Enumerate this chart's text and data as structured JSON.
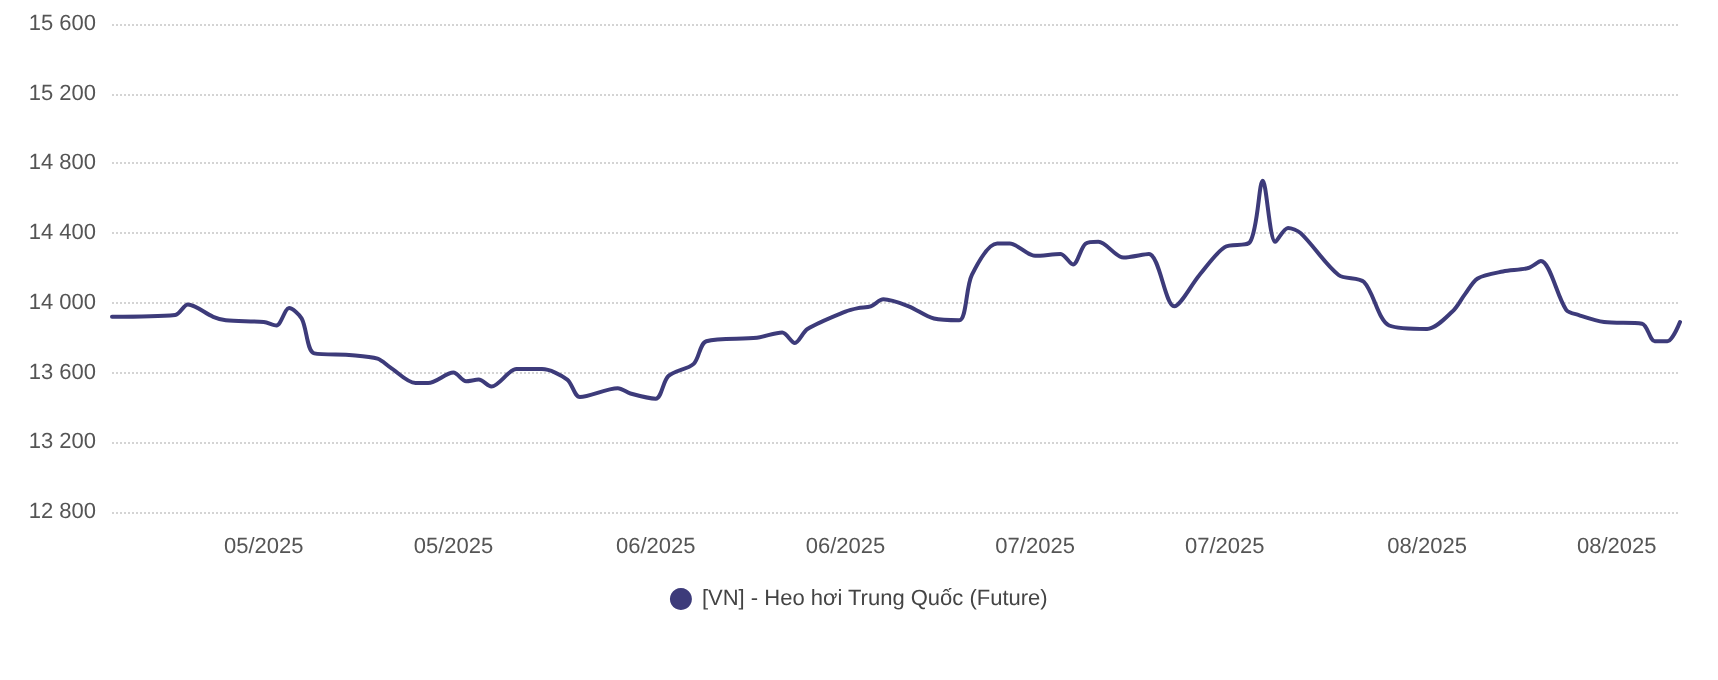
{
  "chart_data": {
    "type": "line",
    "x": [
      "2025-04-19",
      "2025-04-24",
      "2025-04-25",
      "2025-04-27",
      "2025-04-28",
      "2025-05-01",
      "2025-05-02",
      "2025-05-03",
      "2025-05-04",
      "2025-05-05",
      "2025-05-08",
      "2025-05-10",
      "2025-05-11",
      "2025-05-13",
      "2025-05-14",
      "2025-05-16",
      "2025-05-17",
      "2025-05-18",
      "2025-05-19",
      "2025-05-21",
      "2025-05-23",
      "2025-05-25",
      "2025-05-26",
      "2025-05-29",
      "2025-05-30",
      "2025-06-01",
      "2025-06-02",
      "2025-06-04",
      "2025-06-05",
      "2025-06-09",
      "2025-06-11",
      "2025-06-12",
      "2025-06-13",
      "2025-06-16",
      "2025-06-17",
      "2025-06-18",
      "2025-06-19",
      "2025-06-21",
      "2025-06-23",
      "2025-06-25",
      "2025-06-26",
      "2025-06-28",
      "2025-06-29",
      "2025-07-01",
      "2025-07-03",
      "2025-07-04",
      "2025-07-05",
      "2025-07-06",
      "2025-07-08",
      "2025-07-10",
      "2025-07-12",
      "2025-07-14",
      "2025-07-16",
      "2025-07-18",
      "2025-07-19",
      "2025-07-20",
      "2025-07-21",
      "2025-07-22",
      "2025-07-25",
      "2025-07-27",
      "2025-07-29",
      "2025-08-01",
      "2025-08-03",
      "2025-08-04",
      "2025-08-05",
      "2025-08-07",
      "2025-08-09",
      "2025-08-10",
      "2025-08-12",
      "2025-08-13",
      "2025-08-15",
      "2025-08-18",
      "2025-08-19",
      "2025-08-20",
      "2025-08-21"
    ],
    "series": [
      {
        "name": "[VN] - Heo hơi Trung Quốc (Future)",
        "color": "#3d3b7a",
        "values": [
          13920,
          13930,
          13990,
          13920,
          13900,
          13890,
          13870,
          13970,
          13910,
          13710,
          13700,
          13680,
          13630,
          13540,
          13540,
          13600,
          13550,
          13560,
          13520,
          13620,
          13620,
          13560,
          13460,
          13510,
          13480,
          13450,
          13580,
          13650,
          13780,
          13800,
          13830,
          13770,
          13850,
          13950,
          13970,
          13980,
          14020,
          13980,
          13910,
          13900,
          14160,
          14340,
          14340,
          14270,
          14280,
          14220,
          14340,
          14350,
          14260,
          14280,
          13980,
          14160,
          14320,
          14350,
          14700,
          14350,
          14430,
          14400,
          14160,
          14120,
          13870,
          13850,
          13950,
          14050,
          14140,
          14180,
          14200,
          14240,
          13960,
          13930,
          13890,
          13880,
          13780,
          13780,
          13890
        ]
      }
    ],
    "xlim": [
      "2025-04-19",
      "2025-08-21"
    ],
    "xticks": [
      {
        "value": "2025-05-01",
        "label": "05/2025"
      },
      {
        "value": "2025-05-16",
        "label": "05/2025"
      },
      {
        "value": "2025-06-01",
        "label": "06/2025"
      },
      {
        "value": "2025-06-16",
        "label": "06/2025"
      },
      {
        "value": "2025-07-01",
        "label": "07/2025"
      },
      {
        "value": "2025-07-16",
        "label": "07/2025"
      },
      {
        "value": "2025-08-01",
        "label": "08/2025"
      },
      {
        "value": "2025-08-16",
        "label": "08/2025"
      }
    ],
    "ylim": [
      12800,
      15600
    ],
    "yticks": [
      {
        "value": 12800,
        "label": "12 800"
      },
      {
        "value": 13200,
        "label": "13 200"
      },
      {
        "value": 13600,
        "label": "13 600"
      },
      {
        "value": 14000,
        "label": "14 000"
      },
      {
        "value": 14400,
        "label": "14 400"
      },
      {
        "value": 14800,
        "label": "14 800"
      },
      {
        "value": 15200,
        "label": "15 200"
      },
      {
        "value": 15600,
        "label": "15 600"
      }
    ],
    "grid": "y",
    "legend": "bottom",
    "marker": "none",
    "line_style": "solid"
  }
}
